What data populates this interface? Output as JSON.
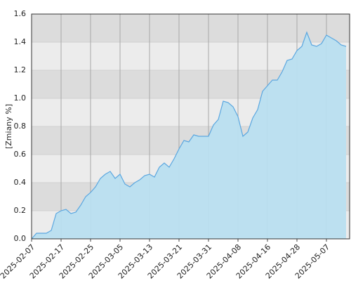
{
  "chart_data": {
    "type": "area",
    "y_label": "[Zmiany %]",
    "categories": [
      "2025-02-07",
      null,
      null,
      null,
      null,
      null,
      "2025-02-17",
      null,
      null,
      null,
      null,
      null,
      "2025-02-25",
      null,
      null,
      null,
      null,
      null,
      "2025-03-05",
      null,
      null,
      null,
      null,
      null,
      "2025-03-13",
      null,
      null,
      null,
      null,
      null,
      "2025-03-21",
      null,
      null,
      null,
      null,
      null,
      "2025-03-31",
      null,
      null,
      null,
      null,
      null,
      "2025-04-08",
      null,
      null,
      null,
      null,
      null,
      "2025-04-16",
      null,
      null,
      null,
      null,
      null,
      "2025-04-28",
      null,
      null,
      null,
      null,
      null,
      "2025-05-07",
      null,
      null,
      null,
      null
    ],
    "values": [
      0.0,
      0.04,
      0.04,
      0.04,
      0.06,
      0.18,
      0.2,
      0.21,
      0.18,
      0.19,
      0.24,
      0.3,
      0.33,
      0.37,
      0.43,
      0.46,
      0.48,
      0.43,
      0.46,
      0.39,
      0.37,
      0.4,
      0.42,
      0.45,
      0.46,
      0.44,
      0.51,
      0.54,
      0.51,
      0.57,
      0.64,
      0.7,
      0.69,
      0.74,
      0.73,
      0.73,
      0.73,
      0.81,
      0.85,
      0.98,
      0.97,
      0.94,
      0.87,
      0.73,
      0.76,
      0.86,
      0.92,
      1.05,
      1.09,
      1.13,
      1.13,
      1.19,
      1.27,
      1.28,
      1.34,
      1.37,
      1.47,
      1.38,
      1.37,
      1.39,
      1.45,
      1.43,
      1.41,
      1.38,
      1.37
    ],
    "color": "#5ba7e0",
    "fill": "#b9dff0",
    "ylim": [
      0,
      1.6
    ],
    "yticks": [
      {
        "value": 0,
        "label": "0.0"
      },
      0.2,
      0.4,
      0.6,
      0.8,
      {
        "value": 1,
        "label": "1.0"
      },
      1.2,
      1.4,
      1.6
    ],
    "grid": true
  }
}
